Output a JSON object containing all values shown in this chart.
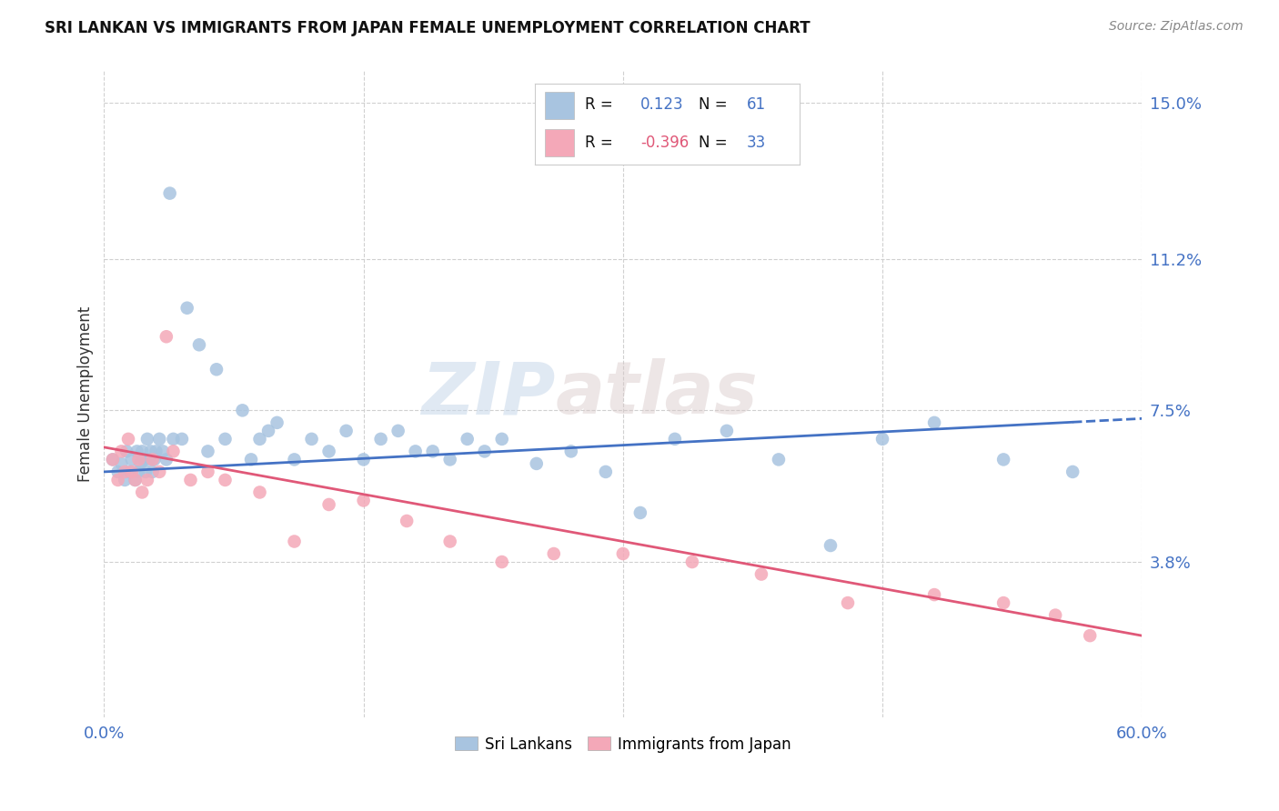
{
  "title": "SRI LANKAN VS IMMIGRANTS FROM JAPAN FEMALE UNEMPLOYMENT CORRELATION CHART",
  "source": "Source: ZipAtlas.com",
  "ylabel": "Female Unemployment",
  "yticks": [
    0.038,
    0.075,
    0.112,
    0.15
  ],
  "ytick_labels": [
    "3.8%",
    "7.5%",
    "11.2%",
    "15.0%"
  ],
  "xmin": 0.0,
  "xmax": 0.6,
  "ymin": 0.0,
  "ymax": 0.158,
  "blue_color": "#a8c4e0",
  "pink_color": "#f4a8b8",
  "line_blue": "#4472c4",
  "line_pink": "#e05878",
  "R_blue": "0.123",
  "N_blue": "61",
  "R_pink": "-0.396",
  "N_pink": "33",
  "watermark_zip": "ZIP",
  "watermark_atlas": "atlas",
  "blue_line_start_y": 0.06,
  "blue_line_end_y": 0.073,
  "pink_line_start_y": 0.066,
  "pink_line_end_y": 0.02,
  "blue_scatter_x": [
    0.005,
    0.008,
    0.01,
    0.012,
    0.013,
    0.015,
    0.016,
    0.018,
    0.019,
    0.02,
    0.021,
    0.022,
    0.023,
    0.024,
    0.025,
    0.026,
    0.027,
    0.028,
    0.029,
    0.03,
    0.032,
    0.034,
    0.036,
    0.038,
    0.04,
    0.045,
    0.048,
    0.055,
    0.06,
    0.065,
    0.07,
    0.08,
    0.085,
    0.09,
    0.095,
    0.1,
    0.11,
    0.12,
    0.13,
    0.14,
    0.15,
    0.16,
    0.17,
    0.18,
    0.19,
    0.2,
    0.21,
    0.22,
    0.23,
    0.25,
    0.27,
    0.29,
    0.31,
    0.33,
    0.36,
    0.39,
    0.42,
    0.45,
    0.48,
    0.52,
    0.56
  ],
  "blue_scatter_y": [
    0.063,
    0.06,
    0.062,
    0.058,
    0.065,
    0.06,
    0.063,
    0.058,
    0.065,
    0.06,
    0.062,
    0.065,
    0.063,
    0.06,
    0.068,
    0.063,
    0.065,
    0.06,
    0.063,
    0.065,
    0.068,
    0.065,
    0.063,
    0.128,
    0.068,
    0.068,
    0.1,
    0.091,
    0.065,
    0.085,
    0.068,
    0.075,
    0.063,
    0.068,
    0.07,
    0.072,
    0.063,
    0.068,
    0.065,
    0.07,
    0.063,
    0.068,
    0.07,
    0.065,
    0.065,
    0.063,
    0.068,
    0.065,
    0.068,
    0.062,
    0.065,
    0.06,
    0.05,
    0.068,
    0.07,
    0.063,
    0.042,
    0.068,
    0.072,
    0.063,
    0.06
  ],
  "pink_scatter_x": [
    0.005,
    0.008,
    0.01,
    0.012,
    0.014,
    0.016,
    0.018,
    0.02,
    0.022,
    0.025,
    0.028,
    0.032,
    0.036,
    0.04,
    0.05,
    0.06,
    0.07,
    0.09,
    0.11,
    0.13,
    0.15,
    0.175,
    0.2,
    0.23,
    0.26,
    0.3,
    0.34,
    0.38,
    0.43,
    0.48,
    0.52,
    0.55,
    0.57
  ],
  "pink_scatter_y": [
    0.063,
    0.058,
    0.065,
    0.06,
    0.068,
    0.06,
    0.058,
    0.063,
    0.055,
    0.058,
    0.063,
    0.06,
    0.093,
    0.065,
    0.058,
    0.06,
    0.058,
    0.055,
    0.043,
    0.052,
    0.053,
    0.048,
    0.043,
    0.038,
    0.04,
    0.04,
    0.038,
    0.035,
    0.028,
    0.03,
    0.028,
    0.025,
    0.02
  ]
}
